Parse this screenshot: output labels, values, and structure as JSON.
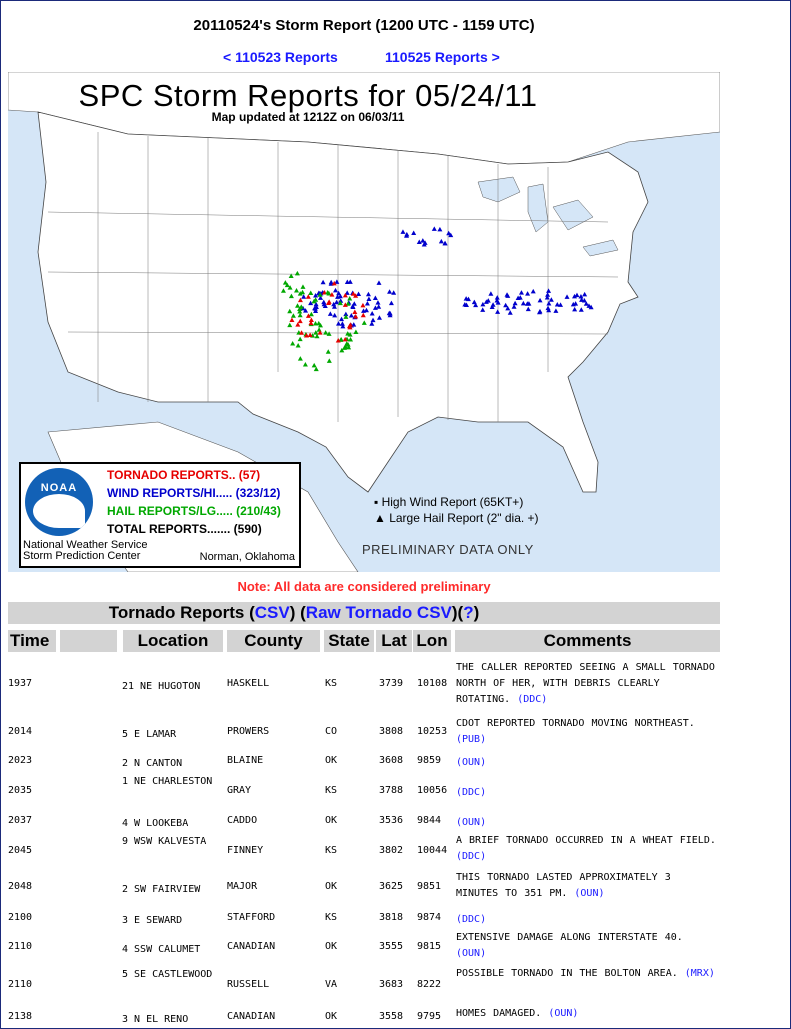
{
  "page": {
    "title": "20110524's Storm Report (1200 UTC - 1159 UTC)",
    "prev_link": "< 110523 Reports",
    "next_link": "110525 Reports >",
    "note": "Note: All data are considered preliminary"
  },
  "map": {
    "title": "SPC Storm Reports for 05/24/11",
    "updated": "Map updated at 1212Z on 06/03/11",
    "legend": {
      "tornado": "TORNADO REPORTS.. (57)",
      "wind": "WIND REPORTS/HI..... (323/12)",
      "hail": "HAIL REPORTS/LG..... (210/43)",
      "total": "TOTAL REPORTS....... (590)",
      "logo_text": "NOAA",
      "nws_line1": "National Weather Service",
      "nws_line2": "Storm Prediction Center",
      "norman": "Norman, Oklahoma"
    },
    "symbol_key": {
      "high_wind": "▪ High Wind Report (65KT+)",
      "large_hail": "▲ Large Hail Report (2\" dia. +)"
    },
    "preliminary": "PRELIMINARY DATA ONLY",
    "colors": {
      "tornado": "#e60000",
      "wind": "#0000cc",
      "hail": "#00a800",
      "water": "#d5e6f7"
    }
  },
  "section": {
    "title": "Tornado Reports",
    "csv": "CSV",
    "raw_csv": "Raw Tornado CSV",
    "help": "?"
  },
  "columns": {
    "time": "Time",
    "location": "Location",
    "county": "County",
    "state": "State",
    "lat": "Lat",
    "lon": "Lon",
    "comments": "Comments"
  },
  "rows": [
    {
      "time": "1937",
      "location": "21 NE HUGOTON",
      "county": "HASKELL",
      "state": "KS",
      "lat": "3739",
      "lon": "10108",
      "comment": "THE CALLER REPORTED SEEING A SMALL TORNADO NORTH OF HER, WITH DEBRIS CLEARLY ROTATING.",
      "office": "(DDC)"
    },
    {
      "time": "2014",
      "location": "5 E LAMAR",
      "county": "PROWERS",
      "state": "CO",
      "lat": "3808",
      "lon": "10253",
      "comment": "CDOT REPORTED TORNADO MOVING NORTHEAST.",
      "office": "(PUB)"
    },
    {
      "time": "2023",
      "location": "2 N CANTON",
      "county": "BLAINE",
      "state": "OK",
      "lat": "3608",
      "lon": "9859",
      "comment": "",
      "office": "(OUN)"
    },
    {
      "time": "2035",
      "location": "1 NE CHARLESTON",
      "county": "GRAY",
      "state": "KS",
      "lat": "3788",
      "lon": "10056",
      "comment": "",
      "office": "(DDC)"
    },
    {
      "time": "2037",
      "location": "4 W LOOKEBA",
      "county": "CADDO",
      "state": "OK",
      "lat": "3536",
      "lon": "9844",
      "comment": "",
      "office": "(OUN)"
    },
    {
      "time": "2045",
      "location": "9 WSW KALVESTA",
      "county": "FINNEY",
      "state": "KS",
      "lat": "3802",
      "lon": "10044",
      "comment": "A BRIEF TORNADO OCCURRED IN A WHEAT FIELD.",
      "office": "(DDC)"
    },
    {
      "time": "2048",
      "location": "2 SW FAIRVIEW",
      "county": "MAJOR",
      "state": "OK",
      "lat": "3625",
      "lon": "9851",
      "comment": "THIS TORNADO LASTED APPROXIMATELY 3 MINUTES TO 351 PM.",
      "office": "(OUN)"
    },
    {
      "time": "2100",
      "location": "3 E SEWARD",
      "county": "STAFFORD",
      "state": "KS",
      "lat": "3818",
      "lon": "9874",
      "comment": "",
      "office": "(DDC)"
    },
    {
      "time": "2110",
      "location": "4 SSW CALUMET",
      "county": "CANADIAN",
      "state": "OK",
      "lat": "3555",
      "lon": "9815",
      "comment": "EXTENSIVE DAMAGE ALONG INTERSTATE 40.",
      "office": "(OUN)"
    },
    {
      "time": "2110",
      "location": "5 SE CASTLEWOOD",
      "county": "RUSSELL",
      "state": "VA",
      "lat": "3683",
      "lon": "8222",
      "comment": "POSSIBLE TORNADO IN THE BOLTON AREA.",
      "office": "(MRX)"
    },
    {
      "time": "2138",
      "location": "3 N EL RENO",
      "county": "CANADIAN",
      "state": "OK",
      "lat": "3558",
      "lon": "9795",
      "comment": "HOMES DAMAGED.",
      "office": "(OUN)"
    }
  ]
}
